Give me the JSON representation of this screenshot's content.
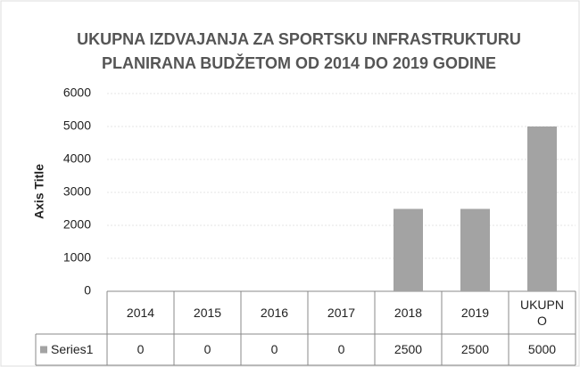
{
  "chart_data": {
    "type": "bar",
    "title": [
      "UKUPNA IZDVAJANJA ZA SPORTSKU INFRASTRUKTURU",
      "PLANIRANA BUDŽETOM  OD 2014 DO 2019 GODINE"
    ],
    "y_axis_title": "Axis Title",
    "categories": [
      "2014",
      "2015",
      "2016",
      "2017",
      "2018",
      "2019",
      "UKUPNO"
    ],
    "series": [
      {
        "name": "Series1",
        "color": "#a3a3a3",
        "values": [
          0,
          0,
          0,
          0,
          2500,
          2500,
          5000
        ]
      }
    ],
    "ylim": [
      0,
      6000
    ],
    "yticks": [
      0,
      1000,
      2000,
      3000,
      4000,
      5000,
      6000
    ],
    "grid": true
  }
}
